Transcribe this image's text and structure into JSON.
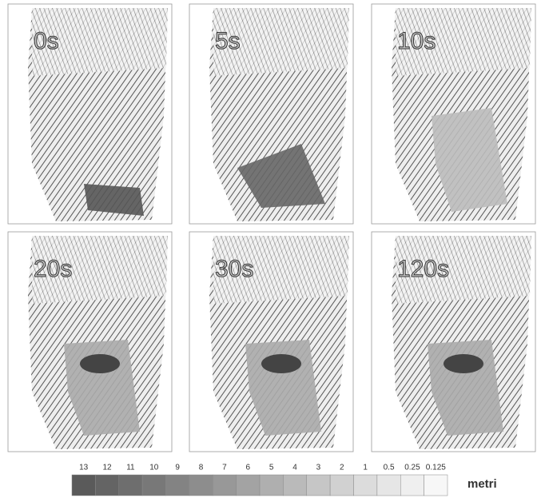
{
  "panels": [
    {
      "label": "0s"
    },
    {
      "label": "5s"
    },
    {
      "label": "10s"
    },
    {
      "label": "20s"
    },
    {
      "label": "30s"
    },
    {
      "label": "120s"
    }
  ],
  "legend": {
    "values": [
      "13",
      "12",
      "11",
      "10",
      "9",
      "8",
      "7",
      "6",
      "5",
      "4",
      "3",
      "2",
      "1",
      "0.5",
      "0.25",
      "0.125"
    ],
    "colors": [
      "#5a5a5a",
      "#646464",
      "#6e6e6e",
      "#787878",
      "#838383",
      "#8d8d8d",
      "#989898",
      "#a3a3a3",
      "#afafaf",
      "#bababa",
      "#c6c6c6",
      "#d1d1d1",
      "#dcdcdc",
      "#e6e6e6",
      "#efefef",
      "#f7f7f7"
    ],
    "unit": "metri"
  }
}
